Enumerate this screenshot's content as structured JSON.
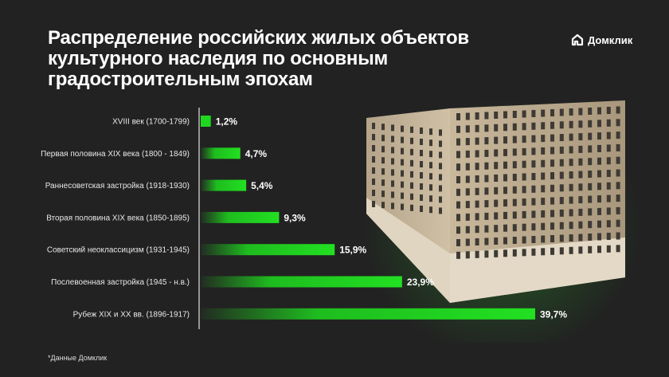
{
  "header": {
    "title_lines": [
      "Распределение российских жилых объектов",
      "культурного наследия по основным",
      "градостроительным эпохам"
    ]
  },
  "logo": {
    "text": "Домклик",
    "icon": "house-logo-icon"
  },
  "footnote": "*Данные Домклик",
  "colors": {
    "background": "#222222",
    "bar": "#1ed81e",
    "text": "#ffffff"
  },
  "chart_data": {
    "type": "bar",
    "orientation": "horizontal",
    "categories": [
      "XVIII век (1700-1799)",
      "Первая половина XIX века (1800 - 1849)",
      "Раннесоветская застройка (1918-1930)",
      "Вторая половина XIX века (1850-1895)",
      "Советский неоклассицизм (1931-1945)",
      "Послевоенная застройка (1945 - н.в.)",
      "Рубеж XIX и XX вв. (1896-1917)"
    ],
    "values": [
      1.2,
      4.7,
      5.4,
      9.3,
      15.9,
      23.9,
      39.7
    ],
    "data_labels": [
      "1,2%",
      "4,7%",
      "5,4%",
      "9,3%",
      "15,9%",
      "23,9%",
      "39,7%"
    ],
    "unit": "%",
    "xlim": [
      0,
      40
    ],
    "grid": false
  }
}
